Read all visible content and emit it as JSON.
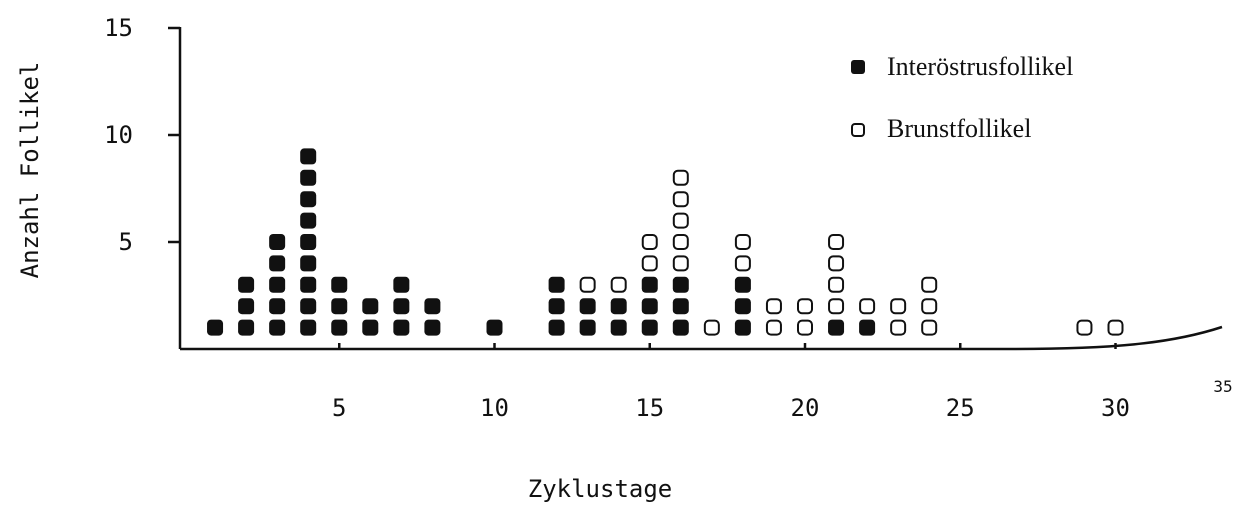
{
  "chart_data": {
    "type": "scatter",
    "xlabel": "Zyklustage",
    "ylabel": "Anzahl Follikel",
    "xlim": [
      0,
      35
    ],
    "ylim": [
      0,
      15
    ],
    "x_ticks": [
      "5",
      "10",
      "15",
      "20",
      "25",
      "30",
      "35"
    ],
    "y_ticks": [
      "5",
      "10",
      "15"
    ],
    "legend_position": "top-right",
    "series": [
      {
        "name": "Interöstrusfollikel",
        "marker": "filled-square",
        "color": "#111111",
        "points": [
          {
            "x": 1,
            "y": 1
          },
          {
            "x": 2,
            "y": 1
          },
          {
            "x": 2,
            "y": 2
          },
          {
            "x": 2,
            "y": 3
          },
          {
            "x": 3,
            "y": 1
          },
          {
            "x": 3,
            "y": 2
          },
          {
            "x": 3,
            "y": 3
          },
          {
            "x": 3,
            "y": 4
          },
          {
            "x": 3,
            "y": 5
          },
          {
            "x": 4,
            "y": 1
          },
          {
            "x": 4,
            "y": 2
          },
          {
            "x": 4,
            "y": 3
          },
          {
            "x": 4,
            "y": 4
          },
          {
            "x": 4,
            "y": 5
          },
          {
            "x": 4,
            "y": 6
          },
          {
            "x": 4,
            "y": 7
          },
          {
            "x": 4,
            "y": 8
          },
          {
            "x": 4,
            "y": 9
          },
          {
            "x": 5,
            "y": 1
          },
          {
            "x": 5,
            "y": 2
          },
          {
            "x": 5,
            "y": 3
          },
          {
            "x": 6,
            "y": 1
          },
          {
            "x": 6,
            "y": 2
          },
          {
            "x": 7,
            "y": 1
          },
          {
            "x": 7,
            "y": 2
          },
          {
            "x": 7,
            "y": 3
          },
          {
            "x": 8,
            "y": 1
          },
          {
            "x": 8,
            "y": 2
          },
          {
            "x": 10,
            "y": 1
          },
          {
            "x": 12,
            "y": 1
          },
          {
            "x": 12,
            "y": 2
          },
          {
            "x": 12,
            "y": 3
          },
          {
            "x": 13,
            "y": 1
          },
          {
            "x": 13,
            "y": 2
          },
          {
            "x": 14,
            "y": 1
          },
          {
            "x": 14,
            "y": 2
          },
          {
            "x": 15,
            "y": 1
          },
          {
            "x": 15,
            "y": 2
          },
          {
            "x": 15,
            "y": 3
          },
          {
            "x": 16,
            "y": 1
          },
          {
            "x": 16,
            "y": 2
          },
          {
            "x": 16,
            "y": 3
          },
          {
            "x": 18,
            "y": 1
          },
          {
            "x": 18,
            "y": 2
          },
          {
            "x": 18,
            "y": 3
          },
          {
            "x": 21,
            "y": 1
          },
          {
            "x": 22,
            "y": 1
          }
        ]
      },
      {
        "name": "Brunstfollikel",
        "marker": "open-square",
        "color": "#111111",
        "points": [
          {
            "x": 13,
            "y": 3
          },
          {
            "x": 14,
            "y": 3
          },
          {
            "x": 15,
            "y": 4
          },
          {
            "x": 15,
            "y": 5
          },
          {
            "x": 16,
            "y": 4
          },
          {
            "x": 16,
            "y": 5
          },
          {
            "x": 16,
            "y": 6
          },
          {
            "x": 16,
            "y": 7
          },
          {
            "x": 16,
            "y": 8
          },
          {
            "x": 17,
            "y": 1
          },
          {
            "x": 18,
            "y": 4
          },
          {
            "x": 18,
            "y": 5
          },
          {
            "x": 19,
            "y": 1
          },
          {
            "x": 19,
            "y": 2
          },
          {
            "x": 20,
            "y": 1
          },
          {
            "x": 20,
            "y": 2
          },
          {
            "x": 21,
            "y": 2
          },
          {
            "x": 21,
            "y": 3
          },
          {
            "x": 21,
            "y": 4
          },
          {
            "x": 21,
            "y": 5
          },
          {
            "x": 22,
            "y": 2
          },
          {
            "x": 23,
            "y": 1
          },
          {
            "x": 23,
            "y": 2
          },
          {
            "x": 24,
            "y": 1
          },
          {
            "x": 24,
            "y": 2
          },
          {
            "x": 24,
            "y": 3
          },
          {
            "x": 29,
            "y": 1
          },
          {
            "x": 30,
            "y": 1
          }
        ]
      }
    ]
  }
}
